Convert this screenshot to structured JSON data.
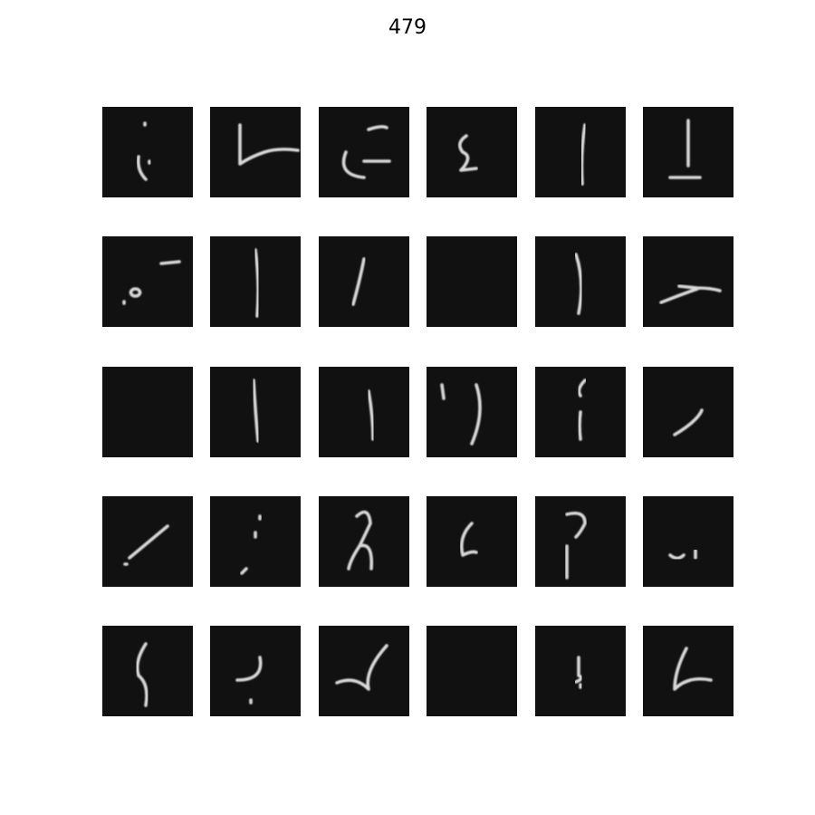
{
  "title": "479"
}
